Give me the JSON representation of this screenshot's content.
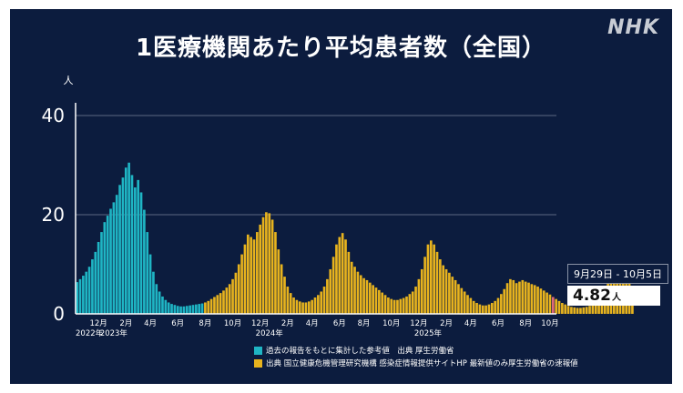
{
  "title": "1医療機関あたり平均患者数（全国）",
  "logo": "NHK",
  "colors": {
    "background": "#0c1c3e",
    "past": "#1fb5c4",
    "current": "#e7b31e",
    "latest": "#e06a7a",
    "grid": "#5c6782"
  },
  "callout": {
    "period": "9月29日 - 10月5日",
    "value": "4.82",
    "unit": "人"
  },
  "legend": [
    {
      "color": "#1fb5c4",
      "label": "過去の報告をもとに集計した参考値　出典 厚生労働省"
    },
    {
      "color": "#e7b31e",
      "label": "出典 国立健康危機管理研究機構 感染症情報提供サイトHP 最新値のみ厚生労働省の速報値"
    }
  ],
  "chart_data": {
    "type": "bar",
    "ylabel": "人",
    "ylim": [
      0,
      40
    ],
    "yticks": [
      0,
      20,
      40
    ],
    "xticks": [
      {
        "label": "12月",
        "week": 7
      },
      {
        "label": "2月",
        "week": 16
      },
      {
        "label": "4月",
        "week": 24
      },
      {
        "label": "6月",
        "week": 33
      },
      {
        "label": "8月",
        "week": 42
      },
      {
        "label": "10月",
        "week": 51
      },
      {
        "label": "12月",
        "week": 60
      },
      {
        "label": "2月",
        "week": 69
      },
      {
        "label": "4月",
        "week": 77
      },
      {
        "label": "6月",
        "week": 86
      },
      {
        "label": "8月",
        "week": 94
      },
      {
        "label": "10月",
        "week": 103
      },
      {
        "label": "12月",
        "week": 112
      },
      {
        "label": "2月",
        "week": 121
      },
      {
        "label": "4月",
        "week": 129
      },
      {
        "label": "6月",
        "week": 138
      },
      {
        "label": "8月",
        "week": 147
      },
      {
        "label": "10月",
        "week": 155
      }
    ],
    "year_labels": [
      {
        "label": "2022年",
        "week": 4
      },
      {
        "label": "2023年",
        "week": 12
      },
      {
        "label": "2024年",
        "week": 63
      },
      {
        "label": "2025年",
        "week": 115
      }
    ],
    "series": [
      {
        "name": "過去の報告をもとに集計した参考値",
        "start_week": 0,
        "values": [
          6.4,
          7.0,
          7.7,
          8.5,
          9.5,
          11.0,
          12.5,
          14.5,
          16.5,
          18.5,
          19.8,
          21.2,
          22.5,
          24.0,
          26.0,
          27.5,
          29.5,
          30.5,
          28.0,
          25.5,
          27.0,
          24.5,
          21.0,
          16.5,
          12.0,
          8.5,
          6.0,
          4.5,
          3.5,
          2.8,
          2.3,
          2.0,
          1.8,
          1.6,
          1.5,
          1.5,
          1.6,
          1.7,
          1.8,
          1.9,
          2.0,
          2.1
        ]
      },
      {
        "name": "国立健康危機管理研究機構 感染症情報提供サイトHP",
        "start_week": 42,
        "values": [
          2.3,
          2.6,
          3.0,
          3.4,
          3.8,
          4.2,
          4.7,
          5.3,
          6.0,
          7.0,
          8.3,
          10.0,
          12.0,
          14.0,
          16.0,
          15.5,
          15.0,
          16.5,
          18.0,
          19.5,
          20.5,
          20.3,
          19.0,
          16.5,
          13.0,
          10.0,
          7.5,
          5.5,
          4.2,
          3.3,
          2.8,
          2.5,
          2.3,
          2.3,
          2.5,
          2.8,
          3.3,
          3.8,
          4.5,
          5.5,
          7.0,
          9.0,
          11.5,
          14.0,
          15.5,
          16.3,
          15.0,
          12.5,
          10.5,
          9.5,
          8.5,
          7.8,
          7.2,
          6.8,
          6.3,
          5.8,
          5.3,
          4.8,
          4.3,
          3.8,
          3.3,
          3.0,
          2.8,
          2.8,
          3.0,
          3.2,
          3.5,
          4.0,
          4.5,
          5.5,
          7.0,
          9.0,
          11.5,
          14.0,
          14.8,
          14.0,
          12.5,
          11.0,
          9.8,
          9.0,
          8.3,
          7.5,
          6.8,
          6.0,
          5.2,
          4.5,
          3.8,
          3.2,
          2.6,
          2.2,
          1.9,
          1.7,
          1.7,
          1.9,
          2.2,
          2.6,
          3.2,
          4.0,
          5.0,
          6.2,
          7.0,
          6.8,
          6.2,
          6.5,
          6.8,
          6.5,
          6.3,
          6.0,
          5.8,
          5.5,
          5.1,
          4.7,
          4.3,
          3.9,
          3.4,
          3.0,
          2.6,
          2.2,
          1.9,
          1.6,
          1.4,
          1.3,
          1.2,
          1.2,
          1.3,
          1.4,
          1.6,
          2.0,
          2.5,
          3.2,
          4.2,
          5.5,
          6.5,
          7.5,
          8.5,
          8.3,
          8.0,
          8.2,
          7.6,
          6.8,
          4.82
        ]
      }
    ],
    "latest": {
      "week": 156,
      "value": 4.82
    }
  }
}
